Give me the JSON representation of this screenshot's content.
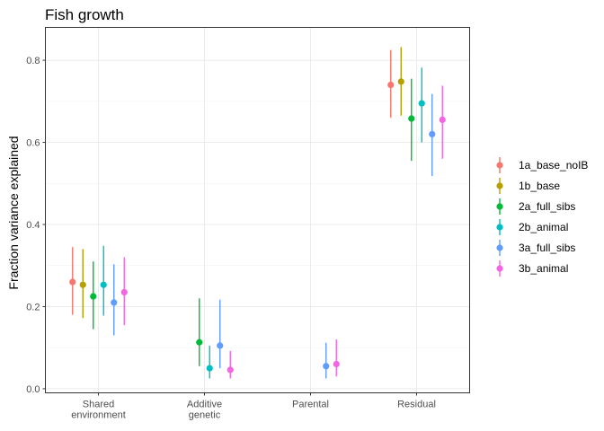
{
  "chart_data": {
    "type": "scatter",
    "title": "Fish growth",
    "xlabel": "",
    "ylabel": "Fraction variance explained",
    "ylim": [
      -0.01,
      0.88
    ],
    "yticks": [
      "0.0",
      "0.2",
      "0.4",
      "0.6",
      "0.8"
    ],
    "categories": [
      [
        "Shared",
        "environment"
      ],
      [
        "Additive",
        "genetic"
      ],
      [
        "Parental"
      ],
      [
        "Residual"
      ]
    ],
    "grid": true,
    "legend_position": "right",
    "series": [
      {
        "name": "1a_base_noIB",
        "color": "#F8766D",
        "points": [
          {
            "category": 0,
            "y": 0.26,
            "lo": 0.18,
            "hi": 0.345
          },
          {
            "category": 3,
            "y": 0.74,
            "lo": 0.66,
            "hi": 0.825
          }
        ]
      },
      {
        "name": "1b_base",
        "color": "#B79F00",
        "points": [
          {
            "category": 0,
            "y": 0.253,
            "lo": 0.172,
            "hi": 0.34
          },
          {
            "category": 3,
            "y": 0.748,
            "lo": 0.665,
            "hi": 0.832
          }
        ]
      },
      {
        "name": "2a_full_sibs",
        "color": "#00BA38",
        "points": [
          {
            "category": 0,
            "y": 0.225,
            "lo": 0.145,
            "hi": 0.31
          },
          {
            "category": 1,
            "y": 0.113,
            "lo": 0.055,
            "hi": 0.22
          },
          {
            "category": 3,
            "y": 0.658,
            "lo": 0.555,
            "hi": 0.755
          }
        ]
      },
      {
        "name": "2b_animal",
        "color": "#00BFC4",
        "points": [
          {
            "category": 0,
            "y": 0.253,
            "lo": 0.178,
            "hi": 0.348
          },
          {
            "category": 1,
            "y": 0.05,
            "lo": 0.025,
            "hi": 0.105
          },
          {
            "category": 3,
            "y": 0.695,
            "lo": 0.6,
            "hi": 0.782
          }
        ]
      },
      {
        "name": "3a_full_sibs",
        "color": "#619CFF",
        "points": [
          {
            "category": 0,
            "y": 0.21,
            "lo": 0.13,
            "hi": 0.303
          },
          {
            "category": 1,
            "y": 0.105,
            "lo": 0.05,
            "hi": 0.217
          },
          {
            "category": 2,
            "y": 0.055,
            "lo": 0.025,
            "hi": 0.112
          },
          {
            "category": 3,
            "y": 0.62,
            "lo": 0.518,
            "hi": 0.718
          }
        ]
      },
      {
        "name": "3b_animal",
        "color": "#F564E3",
        "points": [
          {
            "category": 0,
            "y": 0.235,
            "lo": 0.155,
            "hi": 0.32
          },
          {
            "category": 1,
            "y": 0.046,
            "lo": 0.025,
            "hi": 0.092
          },
          {
            "category": 2,
            "y": 0.06,
            "lo": 0.03,
            "hi": 0.12
          },
          {
            "category": 3,
            "y": 0.655,
            "lo": 0.56,
            "hi": 0.738
          }
        ]
      }
    ]
  }
}
